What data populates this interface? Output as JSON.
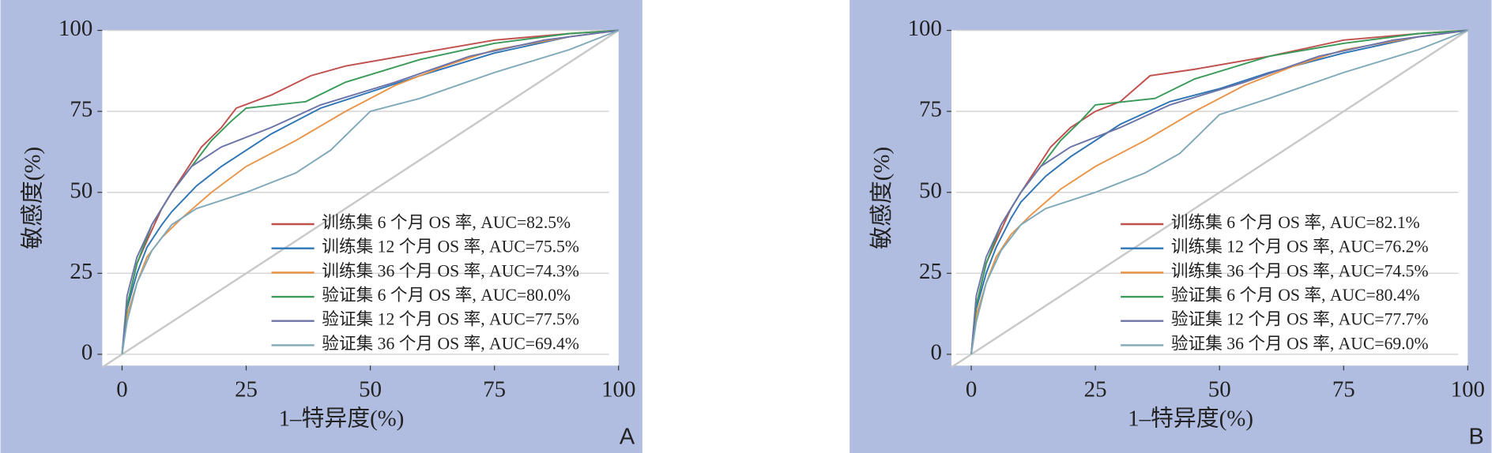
{
  "chart_data": [
    {
      "type": "line",
      "panel_label": "A",
      "xlabel": "1–特异度(%)",
      "ylabel": "敏感度(%)",
      "xlim": [
        -4,
        100
      ],
      "ylim": [
        -3.5,
        100
      ],
      "xticks": [
        0,
        25,
        50,
        75,
        100
      ],
      "yticks": [
        0,
        25,
        50,
        75,
        100
      ],
      "grid": true,
      "series": [
        {
          "name": "训练集 6 个月 OS 率, AUC=82.5%",
          "color": "#c0504d",
          "x": [
            0,
            1,
            3,
            5,
            8,
            10,
            13,
            16,
            20,
            23,
            30,
            38,
            45,
            60,
            75,
            90,
            100
          ],
          "values": [
            0,
            15,
            28,
            35,
            45,
            50,
            57,
            64,
            70,
            76,
            80,
            86,
            89,
            93,
            97,
            99,
            100
          ]
        },
        {
          "name": "训练集 12 个月 OS 率, AUC=75.5%",
          "color": "#2e75b6",
          "x": [
            0,
            1,
            3,
            5,
            8,
            10,
            15,
            20,
            30,
            40,
            50,
            60,
            75,
            90,
            100
          ],
          "values": [
            0,
            14,
            25,
            33,
            40,
            44,
            52,
            58,
            68,
            76,
            81,
            86,
            93,
            98,
            100
          ]
        },
        {
          "name": "训练集 36 个月 OS 率, AUC=74.3%",
          "color": "#e8954a",
          "x": [
            0,
            1,
            3,
            5,
            8,
            12,
            18,
            25,
            35,
            45,
            55,
            65,
            75,
            90,
            100
          ],
          "values": [
            0,
            12,
            22,
            30,
            36,
            42,
            50,
            58,
            66,
            75,
            83,
            89,
            94,
            98,
            100
          ]
        },
        {
          "name": "验证集 6 个月 OS 率, AUC=80.0%",
          "color": "#3a9a5a",
          "x": [
            0,
            1,
            3,
            6,
            10,
            14,
            18,
            22,
            25,
            37,
            45,
            60,
            75,
            90,
            100
          ],
          "values": [
            0,
            15,
            28,
            40,
            50,
            58,
            66,
            72,
            76,
            78,
            84,
            91,
            96,
            99,
            100
          ]
        },
        {
          "name": "验证集 12 个月 OS 率, AUC=77.5%",
          "color": "#6b73a8",
          "x": [
            0,
            1,
            3,
            6,
            10,
            14,
            20,
            30,
            40,
            55,
            70,
            85,
            100
          ],
          "values": [
            0,
            18,
            30,
            40,
            50,
            58,
            64,
            70,
            77,
            84,
            92,
            97,
            100
          ]
        },
        {
          "name": "验证集 36 个月 OS 率, AUC=69.4%",
          "color": "#7fa8b8",
          "x": [
            0,
            1,
            3,
            6,
            10,
            15,
            25,
            35,
            42,
            50,
            60,
            75,
            90,
            100
          ],
          "values": [
            0,
            10,
            22,
            32,
            40,
            45,
            50,
            56,
            63,
            75,
            79,
            87,
            94,
            100
          ]
        }
      ]
    },
    {
      "type": "line",
      "panel_label": "B",
      "xlabel": "1–特异度(%)",
      "ylabel": "敏感度(%)",
      "xlim": [
        -4,
        100
      ],
      "ylim": [
        -3.5,
        100
      ],
      "xticks": [
        0,
        25,
        50,
        75,
        100
      ],
      "yticks": [
        0,
        25,
        50,
        75,
        100
      ],
      "grid": true,
      "series": [
        {
          "name": "训练集 6 个月 OS 率, AUC=82.1%",
          "color": "#c0504d",
          "x": [
            0,
            1,
            3,
            5,
            8,
            10,
            13,
            16,
            20,
            25,
            30,
            36,
            45,
            60,
            75,
            90,
            100
          ],
          "values": [
            0,
            15,
            28,
            35,
            45,
            50,
            57,
            64,
            70,
            75,
            78,
            86,
            88,
            92,
            97,
            99,
            100
          ]
        },
        {
          "name": "训练集 12 个月 OS 率, AUC=76.2%",
          "color": "#2e75b6",
          "x": [
            0,
            1,
            3,
            5,
            8,
            10,
            15,
            20,
            30,
            40,
            50,
            60,
            75,
            90,
            100
          ],
          "values": [
            0,
            14,
            25,
            33,
            42,
            47,
            55,
            61,
            71,
            78,
            82,
            87,
            93,
            98,
            100
          ]
        },
        {
          "name": "训练集 36 个月 OS 率, AUC=74.5%",
          "color": "#e8954a",
          "x": [
            0,
            1,
            3,
            5,
            8,
            12,
            18,
            25,
            35,
            45,
            55,
            65,
            75,
            90,
            100
          ],
          "values": [
            0,
            12,
            22,
            30,
            37,
            43,
            51,
            58,
            66,
            75,
            83,
            89,
            94,
            98,
            100
          ]
        },
        {
          "name": "验证集 6 个月 OS 率, AUC=80.4%",
          "color": "#3a9a5a",
          "x": [
            0,
            1,
            3,
            6,
            10,
            14,
            18,
            22,
            25,
            37,
            45,
            60,
            75,
            90,
            100
          ],
          "values": [
            0,
            15,
            28,
            40,
            50,
            58,
            66,
            72,
            77,
            79,
            85,
            92,
            96,
            99,
            100
          ]
        },
        {
          "name": "验证集 12 个月 OS 率, AUC=77.7%",
          "color": "#6b73a8",
          "x": [
            0,
            1,
            3,
            6,
            10,
            14,
            20,
            30,
            40,
            55,
            70,
            85,
            100
          ],
          "values": [
            0,
            18,
            30,
            40,
            50,
            58,
            64,
            70,
            77,
            84,
            92,
            97,
            100
          ]
        },
        {
          "name": "验证集 36 个月 OS 率, AUC=69.0%",
          "color": "#7fa8b8",
          "x": [
            0,
            1,
            3,
            6,
            10,
            15,
            25,
            35,
            42,
            50,
            60,
            75,
            90,
            100
          ],
          "values": [
            0,
            10,
            22,
            32,
            40,
            45,
            50,
            56,
            62,
            74,
            79,
            87,
            94,
            100
          ]
        }
      ]
    }
  ]
}
